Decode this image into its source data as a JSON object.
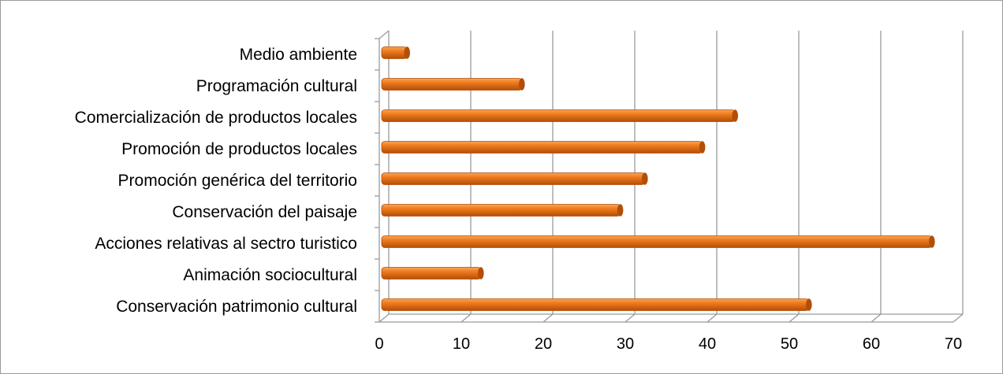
{
  "chart_data": {
    "type": "bar",
    "orientation": "horizontal",
    "style": "3d-cylinder",
    "categories": [
      "Conservación patrimonio cultural",
      "Animación sociocultural",
      "Acciones relativas al sectro turistico",
      "Conservación del paisaje",
      "Promoción genérica del territorio",
      "Promoción de productos locales",
      "Comercialización de productos locales",
      "Programación cultural",
      "Medio ambiente"
    ],
    "values": [
      52,
      12,
      67,
      29,
      32,
      39,
      43,
      17,
      3
    ],
    "xlim": [
      0,
      70
    ],
    "xticks": [
      0,
      10,
      20,
      30,
      40,
      50,
      60,
      70
    ],
    "tick_labels": [
      "0",
      "10",
      "20",
      "30",
      "40",
      "50",
      "60",
      "70"
    ],
    "grid": true,
    "legend": "none",
    "colors": {
      "bar_fill": "#f07c1e",
      "bar_dark": "#b34e08",
      "bar_light": "#f9a65a",
      "grid": "#9a9a9a"
    }
  }
}
